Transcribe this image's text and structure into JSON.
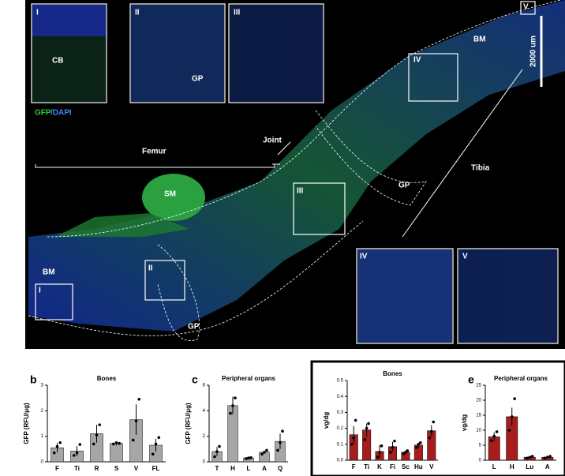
{
  "image": {
    "labels": [
      "I",
      "II",
      "III",
      "CB",
      "GP",
      "GFP",
      "/DAPI",
      "Femur",
      "Joint",
      "Tibia",
      "SM",
      "BM",
      "BM",
      "GP",
      "GP",
      "III",
      "II",
      "I",
      "IV",
      "V",
      "IV",
      "V",
      "2000 um"
    ]
  },
  "chart_data": [
    {
      "type": "bar",
      "panel": "b",
      "title": "Bones",
      "ylabel": "GFP (RFU/μg)",
      "color": "#a6a6a6",
      "categories": [
        "F",
        "Ti",
        "R",
        "S",
        "V",
        "FL"
      ],
      "values": [
        0.55,
        0.42,
        1.1,
        0.72,
        1.65,
        0.65
      ],
      "errors": [
        0.18,
        0.2,
        0.35,
        0.08,
        0.6,
        0.25
      ],
      "points": [
        [
          0.35,
          0.6,
          0.75
        ],
        [
          0.25,
          0.35,
          0.68
        ],
        [
          0.7,
          1.05,
          1.45
        ],
        [
          0.7,
          0.75,
          0.72
        ],
        [
          0.85,
          1.6,
          2.45
        ],
        [
          0.3,
          0.7,
          0.95
        ]
      ],
      "ylim": [
        0,
        3
      ],
      "yticks": [
        0,
        1,
        2,
        3
      ]
    },
    {
      "type": "bar",
      "panel": "c",
      "title": "Peripheral organs",
      "ylabel": "GFP (RFU/μg)",
      "color": "#a6a6a6",
      "categories": [
        "T",
        "H",
        "L",
        "A",
        "Q"
      ],
      "values": [
        0.8,
        4.4,
        0.3,
        0.75,
        1.6
      ],
      "errors": [
        0.35,
        0.7,
        0.05,
        0.12,
        0.6
      ],
      "points": [
        [
          0.4,
          0.8,
          1.2
        ],
        [
          3.8,
          4.4,
          5.0
        ],
        [
          0.25,
          0.3,
          0.32
        ],
        [
          0.6,
          0.75,
          0.9
        ],
        [
          0.9,
          1.5,
          2.4
        ]
      ],
      "ylim": [
        0,
        6
      ],
      "yticks": [
        0,
        2,
        4,
        6
      ]
    },
    {
      "type": "bar",
      "title": "Bones",
      "ylabel": "vg/dg",
      "color": "#a61d1d",
      "categories": [
        "F",
        "Ti",
        "K",
        "Fi",
        "Sc",
        "Hu",
        "V"
      ],
      "values": [
        0.16,
        0.19,
        0.055,
        0.085,
        0.05,
        0.095,
        0.185
      ],
      "errors": [
        0.055,
        0.04,
        0.04,
        0.03,
        0.01,
        0.015,
        0.035
      ],
      "points": [
        [
          0.1,
          0.14,
          0.25
        ],
        [
          0.13,
          0.2,
          0.23
        ],
        [
          0.02,
          0.05,
          0.09
        ],
        [
          0.05,
          0.08,
          0.12
        ],
        [
          0.04,
          0.05,
          0.06
        ],
        [
          0.08,
          0.1,
          0.11
        ],
        [
          0.14,
          0.18,
          0.24
        ]
      ],
      "ylim": [
        0,
        0.5
      ],
      "yticks": [
        {
          "value": 0,
          "label": "0.0"
        },
        0.1,
        0.2,
        0.3,
        0.4,
        0.5
      ]
    },
    {
      "type": "bar",
      "panel": "e",
      "title": "Peripheral organs",
      "ylabel": "vg/dg",
      "color": "#a61d1d",
      "categories": [
        "L",
        "H",
        "Lu",
        "A"
      ],
      "values": [
        7.8,
        14.5,
        1.0,
        1.0
      ],
      "errors": [
        1.5,
        3.0,
        0.3,
        0.3
      ],
      "points": [
        [
          6.5,
          8.0,
          9.5
        ],
        [
          10.0,
          14.5,
          20.5
        ],
        [
          0.7,
          1.0,
          1.3
        ],
        [
          0.7,
          1.0,
          1.3
        ]
      ],
      "ylim": [
        0,
        25
      ],
      "yticks": [
        0,
        5,
        10,
        15,
        20,
        25
      ]
    }
  ]
}
